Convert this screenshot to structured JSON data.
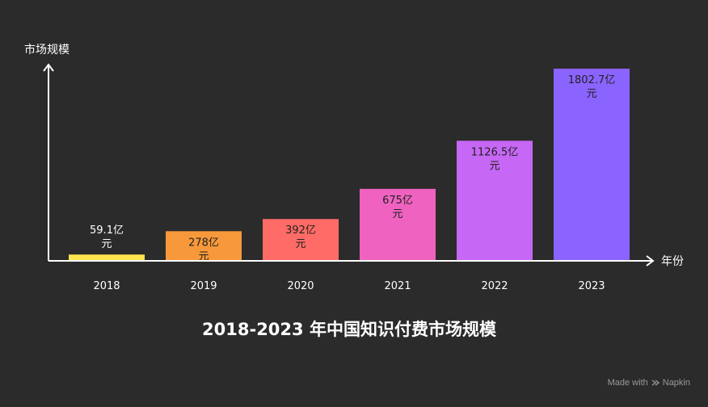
{
  "chart_data": {
    "type": "bar",
    "title": "2018-2023 年中国知识付费市场规模",
    "xlabel": "年份",
    "ylabel": "市场规模",
    "categories": [
      "2018",
      "2019",
      "2020",
      "2021",
      "2022",
      "2023"
    ],
    "values": [
      59.1,
      278,
      392,
      675,
      1126.5,
      1802.7
    ],
    "data_labels": [
      "59.1亿元",
      "278亿元",
      "392亿元",
      "675亿元",
      "1126.5亿元",
      "1802.7亿元"
    ],
    "unit": "亿元",
    "ylim": [
      0,
      1802.7
    ],
    "grid": false,
    "legend": "none",
    "colors": [
      "#ffe44d",
      "#f7993a",
      "#ff6b66",
      "#f062c0",
      "#c767f5",
      "#8b63ff"
    ]
  },
  "watermark": {
    "text": "Made with",
    "brand": "Napkin",
    "icon": "napkin-logo-icon"
  }
}
